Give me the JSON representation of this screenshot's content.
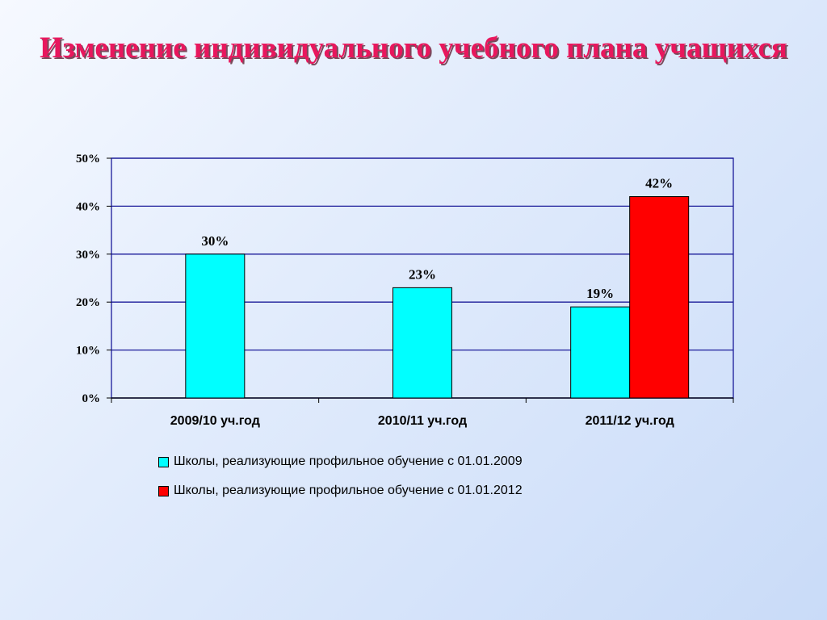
{
  "title": "Изменение индивидуального учебного плана учащихся",
  "colors": {
    "title": "#e8175d",
    "series_1": "#00ffff",
    "series_2": "#ff0000",
    "grid": "#1a1a99"
  },
  "chart_data": {
    "type": "bar",
    "categories": [
      "2009/10 уч.год",
      "2010/11 уч.год",
      "2011/12 уч.год"
    ],
    "series": [
      {
        "name": "Школы, реализующие профильное обучение с 01.01.2009",
        "values": [
          30,
          23,
          19
        ],
        "labels": [
          "30%",
          "23%",
          "19%"
        ]
      },
      {
        "name": "Школы, реализующие профильное обучение с 01.01.2012",
        "values": [
          null,
          null,
          42
        ],
        "labels": [
          "",
          "",
          "42%"
        ]
      }
    ],
    "yticks": [
      "0%",
      "10%",
      "20%",
      "30%",
      "40%",
      "50%"
    ],
    "ylim": [
      0,
      50
    ],
    "grid": true,
    "legend_position": "bottom"
  },
  "legend": {
    "series_1": "Школы, реализующие профильное обучение с 01.01.2009",
    "series_2": "Школы, реализующие профильное обучение с 01.01.2012"
  }
}
